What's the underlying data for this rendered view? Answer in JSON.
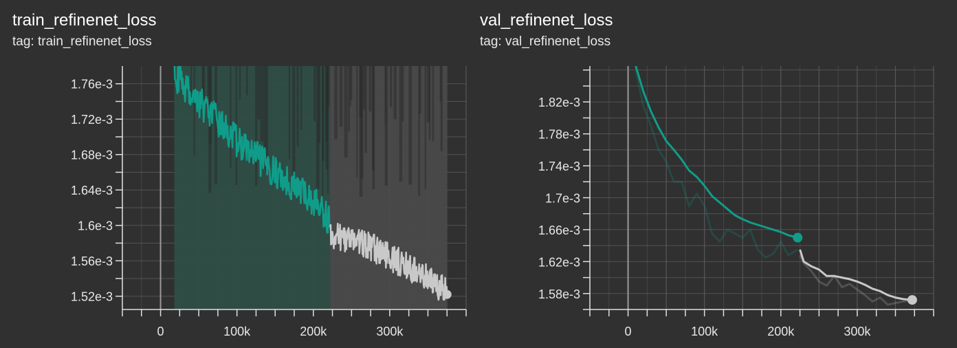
{
  "colors": {
    "background": "#303030",
    "grid": "#5c5c5c",
    "axis": "#e0e0e0",
    "run_teal": "#0f9d8a",
    "run_gray": "#c9c9c9",
    "band_teal": "#2f4e46",
    "band_gray": "#4a4a4a"
  },
  "chart_data": [
    {
      "type": "line",
      "title": "train_refinenet_loss",
      "tag": "tag: train_refinenet_loss",
      "xlim": [
        -50000,
        400000
      ],
      "ylim": [
        0.001505,
        0.00178
      ],
      "x_ticks": [
        0,
        100000,
        200000,
        300000
      ],
      "x_tick_labels": [
        "0",
        "100k",
        "200k",
        "300k"
      ],
      "y_ticks": [
        0.00152,
        0.00156,
        0.0016,
        0.00164,
        0.00168,
        0.00172,
        0.00176
      ],
      "y_tick_labels": [
        "1.52e-3",
        "1.56e-3",
        "1.6e-3",
        "1.64e-3",
        "1.68e-3",
        "1.72e-3",
        "1.76e-3"
      ],
      "grid": true,
      "legend": "none",
      "series": [
        {
          "color": "#0f9d8a",
          "band_color": "#2f4e46",
          "x_range": [
            18000,
            222000
          ],
          "trend": [
            [
              18000,
              0.00177
            ],
            [
              100000,
              0.001695
            ],
            [
              150000,
              0.00166
            ],
            [
              200000,
              0.001628
            ],
            [
              222000,
              0.001605
            ]
          ],
          "noise": 1.8e-05,
          "band": [
            0.0015,
            0.00178
          ],
          "end_x": 222000,
          "end_y": 0.001605,
          "end_marker": false
        },
        {
          "color": "#c9c9c9",
          "band_color": "#4a4a4a",
          "x_range": [
            222000,
            375000
          ],
          "trend": [
            [
              222000,
              0.00159
            ],
            [
              260000,
              0.001582
            ],
            [
              300000,
              0.001565
            ],
            [
              340000,
              0.001545
            ],
            [
              375000,
              0.001525
            ]
          ],
          "noise": 1.6e-05,
          "band": [
            0.0015,
            0.00178
          ],
          "end_x": 375000,
          "end_y": 0.001522,
          "end_marker": true
        }
      ]
    },
    {
      "type": "line",
      "title": "val_refinenet_loss",
      "tag": "tag: val_refinenet_loss",
      "xlim": [
        -50000,
        400000
      ],
      "ylim": [
        0.00156,
        0.001865
      ],
      "x_ticks": [
        0,
        100000,
        200000,
        300000
      ],
      "x_tick_labels": [
        "0",
        "100k",
        "200k",
        "300k"
      ],
      "y_ticks": [
        0.00158,
        0.00162,
        0.00166,
        0.0017,
        0.00174,
        0.00178,
        0.00182
      ],
      "y_tick_labels": [
        "1.58e-3",
        "1.62e-3",
        "1.66e-3",
        "1.7e-3",
        "1.74e-3",
        "1.78e-3",
        "1.82e-3"
      ],
      "grid": true,
      "legend": "none",
      "series": [
        {
          "color": "#0f9d8a",
          "x": [
            10000,
            20000,
            30000,
            40000,
            50000,
            60000,
            70000,
            80000,
            90000,
            100000,
            110000,
            120000,
            130000,
            140000,
            150000,
            160000,
            170000,
            180000,
            190000,
            200000,
            210000,
            222000
          ],
          "y": [
            0.001865,
            0.001833,
            0.001808,
            0.001788,
            0.001771,
            0.00176,
            0.001748,
            0.001734,
            0.001726,
            0.001715,
            0.001702,
            0.001694,
            0.001686,
            0.001678,
            0.001673,
            0.001669,
            0.001666,
            0.001663,
            0.00166,
            0.001657,
            0.001653,
            0.00165
          ],
          "raw_y": [
            0.00186,
            0.001815,
            0.00179,
            0.00176,
            0.001745,
            0.00172,
            0.00172,
            0.00169,
            0.001705,
            0.00169,
            0.001655,
            0.001645,
            0.00166,
            0.001655,
            0.00165,
            0.00166,
            0.001635,
            0.001625,
            0.00163,
            0.001645,
            0.001628,
            0.001635
          ],
          "end_marker": true
        },
        {
          "color": "#c9c9c9",
          "x": [
            225000,
            230000,
            240000,
            250000,
            260000,
            270000,
            280000,
            290000,
            300000,
            310000,
            320000,
            330000,
            340000,
            350000,
            360000,
            372000
          ],
          "y": [
            0.001635,
            0.00162,
            0.001614,
            0.00161,
            0.001602,
            0.001602,
            0.0016,
            0.001598,
            0.001595,
            0.001591,
            0.001586,
            0.001583,
            0.001578,
            0.001575,
            0.001573,
            0.001572
          ],
          "raw_y": [
            0.001628,
            0.001618,
            0.001608,
            0.001595,
            0.00159,
            0.001602,
            0.001588,
            0.001592,
            0.001585,
            0.001578,
            0.00157,
            0.001575,
            0.001566,
            0.001568,
            0.00157,
            0.001572
          ],
          "end_marker": true
        }
      ]
    }
  ]
}
